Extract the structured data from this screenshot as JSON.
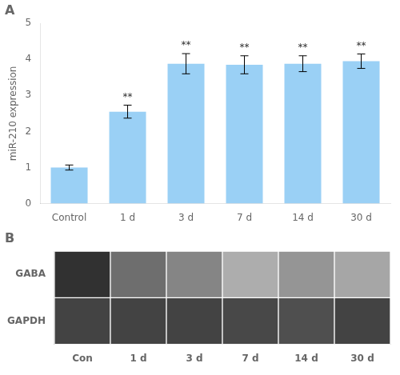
{
  "chart_data": [
    {
      "type": "bar",
      "title": "A",
      "categories": [
        "Control",
        "1 d",
        "3 d",
        "7 d",
        "14 d",
        "30 d"
      ],
      "values": [
        1.0,
        2.55,
        3.88,
        3.85,
        3.88,
        3.95
      ],
      "errors": [
        0.07,
        0.18,
        0.28,
        0.25,
        0.22,
        0.2
      ],
      "annotations": [
        null,
        "**",
        "**",
        "**",
        "**",
        "**"
      ],
      "ylabel": "miR-210 expression",
      "ylim": [
        0,
        5
      ],
      "yticks": [
        0,
        1,
        2,
        3,
        4,
        5
      ],
      "grid": false
    },
    {
      "type": "heatmap",
      "title": "B",
      "x": [
        "Con",
        "1 d",
        "3 d",
        "7 d",
        "14 d",
        "30 d"
      ],
      "y": [
        "GABA",
        "GAPDH"
      ],
      "cells": [
        [
          0.88,
          0.62,
          0.52,
          0.35,
          0.45,
          0.38
        ],
        [
          0.8,
          0.8,
          0.8,
          0.78,
          0.75,
          0.8
        ]
      ],
      "grid": false
    }
  ]
}
